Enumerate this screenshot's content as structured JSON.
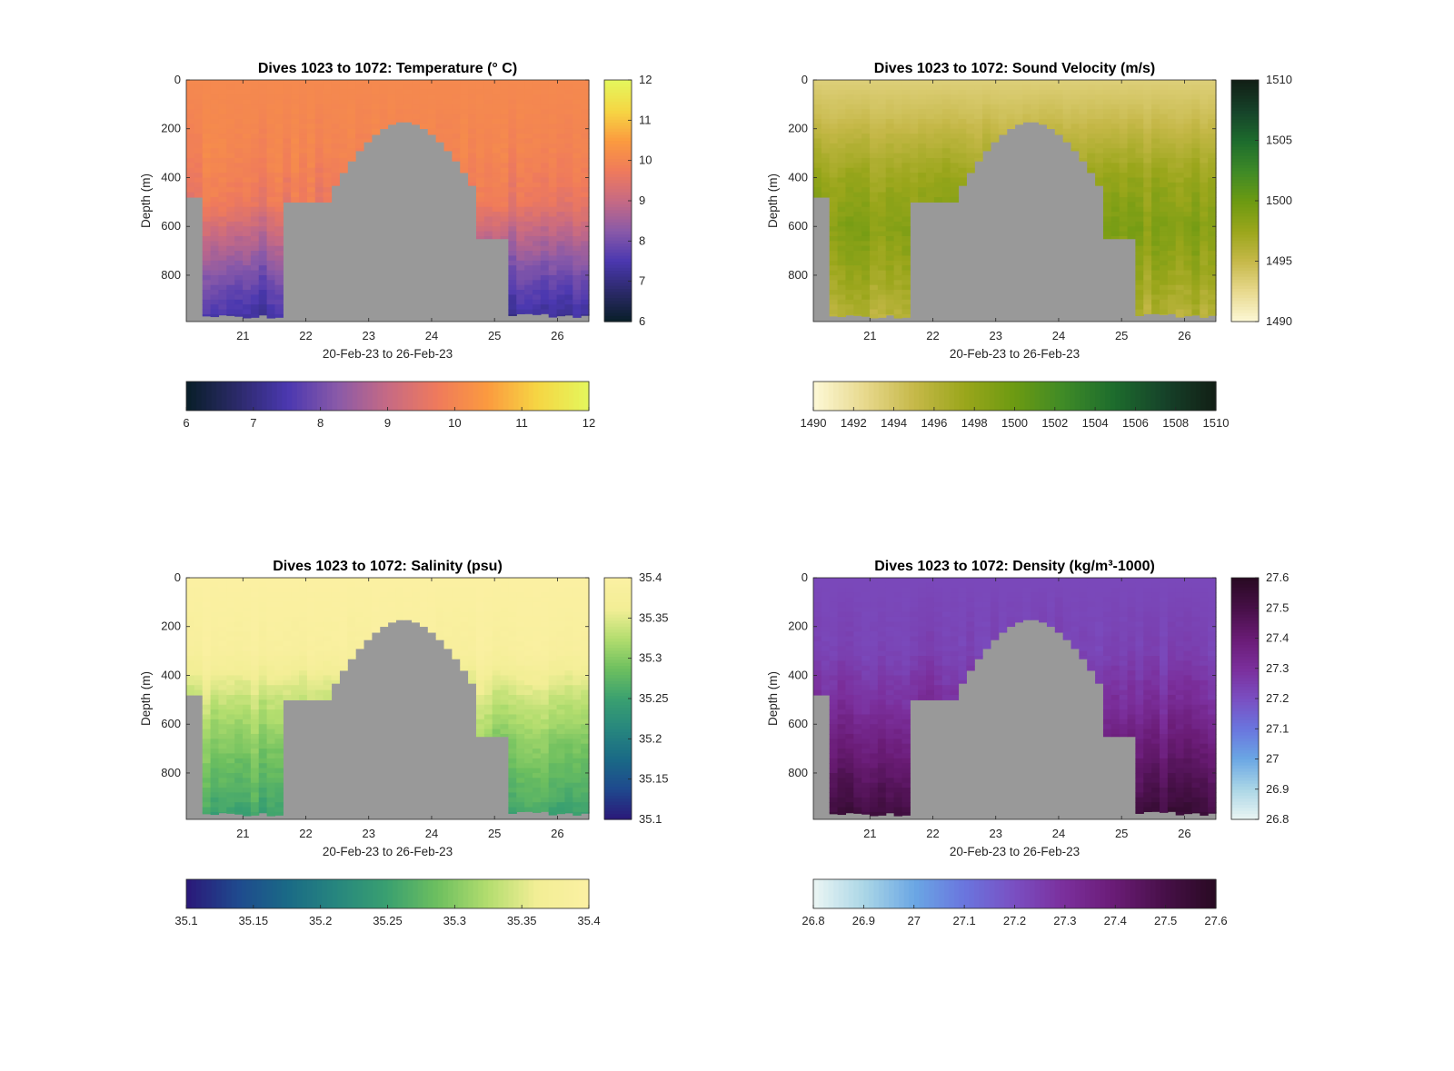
{
  "chart_data": [
    {
      "type": "heatmap",
      "title": "Dives 1023 to 1072: Temperature (° C)",
      "xlabel": "20-Feb-23 to 26-Feb-23",
      "ylabel": "Depth (m)",
      "x_ticks": [
        "21",
        "22",
        "23",
        "24",
        "25",
        "26"
      ],
      "x_tick_values": [
        21,
        22,
        23,
        24,
        25,
        26
      ],
      "xlim": [
        20.1,
        26.5
      ],
      "y_ticks": [
        "0",
        "200",
        "400",
        "600",
        "800"
      ],
      "y_tick_values": [
        0,
        200,
        400,
        600,
        800
      ],
      "ylim": [
        0,
        990
      ],
      "y_reversed": true,
      "clim": [
        6,
        12
      ],
      "colorbar_ticks": [
        "6",
        "7",
        "8",
        "9",
        "10",
        "11",
        "12"
      ],
      "colorbar_tick_values": [
        6,
        7,
        8,
        9,
        10,
        11,
        12
      ],
      "horizontal_colorbar_ticks": [
        "6",
        "7",
        "8",
        "9",
        "10",
        "11",
        "12"
      ],
      "colormap": [
        "#0a1f2b",
        "#2c2a6b",
        "#4b38b0",
        "#8a5aa8",
        "#c66a84",
        "#ef7a5c",
        "#fb9a3f",
        "#f6d543",
        "#e5f55b"
      ],
      "no_data_color": "#999999",
      "profile": {
        "depths": [
          0,
          300,
          500,
          600,
          800,
          990
        ],
        "values": [
          10.1,
          10.0,
          9.7,
          9.1,
          8.0,
          7.2
        ]
      }
    },
    {
      "type": "heatmap",
      "title": "Dives 1023 to 1072: Sound Velocity (m/s)",
      "xlabel": "20-Feb-23 to 26-Feb-23",
      "ylabel": "Depth (m)",
      "x_ticks": [
        "21",
        "22",
        "23",
        "24",
        "25",
        "26"
      ],
      "x_tick_values": [
        21,
        22,
        23,
        24,
        25,
        26
      ],
      "xlim": [
        20.1,
        26.5
      ],
      "y_ticks": [
        "0",
        "200",
        "400",
        "600",
        "800"
      ],
      "y_tick_values": [
        0,
        200,
        400,
        600,
        800
      ],
      "ylim": [
        0,
        990
      ],
      "y_reversed": true,
      "clim": [
        1490,
        1510
      ],
      "colorbar_ticks": [
        "1490",
        "1495",
        "1500",
        "1505",
        "1510"
      ],
      "colorbar_tick_values": [
        1490,
        1495,
        1500,
        1505,
        1510
      ],
      "horizontal_colorbar_ticks": [
        "1490",
        "1492",
        "1494",
        "1496",
        "1498",
        "1500",
        "1502",
        "1504",
        "1506",
        "1508",
        "1510"
      ],
      "colormap": [
        "#fcf7d3",
        "#e7d88c",
        "#c5b848",
        "#9aa61b",
        "#6c9a12",
        "#3e8a27",
        "#1d6c2d",
        "#16432a",
        "#122016"
      ],
      "no_data_color": "#999999",
      "profile": {
        "depths": [
          0,
          150,
          400,
          600,
          800,
          990
        ],
        "values": [
          1493.2,
          1494.5,
          1497.5,
          1498.8,
          1497.5,
          1495.8
        ]
      }
    },
    {
      "type": "heatmap",
      "title": "Dives 1023 to 1072: Salinity (psu)",
      "xlabel": "20-Feb-23 to 26-Feb-23",
      "ylabel": "Depth (m)",
      "x_ticks": [
        "21",
        "22",
        "23",
        "24",
        "25",
        "26"
      ],
      "x_tick_values": [
        21,
        22,
        23,
        24,
        25,
        26
      ],
      "xlim": [
        20.1,
        26.5
      ],
      "y_ticks": [
        "0",
        "200",
        "400",
        "600",
        "800"
      ],
      "y_tick_values": [
        0,
        200,
        400,
        600,
        800
      ],
      "ylim": [
        0,
        990
      ],
      "y_reversed": true,
      "clim": [
        35.1,
        35.4
      ],
      "colorbar_ticks": [
        "35.1",
        "35.15",
        "35.2",
        "35.25",
        "35.3",
        "35.35",
        "35.4"
      ],
      "colorbar_tick_values": [
        35.1,
        35.15,
        35.2,
        35.25,
        35.3,
        35.35,
        35.4
      ],
      "horizontal_colorbar_ticks": [
        "35.1",
        "35.15",
        "35.2",
        "35.25",
        "35.3",
        "35.35",
        "35.4"
      ],
      "colormap": [
        "#2a1a7a",
        "#1f4a8e",
        "#1a6a86",
        "#27877e",
        "#3aa070",
        "#6dbf5f",
        "#b2dd6e",
        "#f2ee95",
        "#fbf0a2"
      ],
      "no_data_color": "#999999",
      "profile": {
        "depths": [
          0,
          300,
          500,
          700,
          900,
          990
        ],
        "values": [
          35.4,
          35.39,
          35.34,
          35.3,
          35.27,
          35.25
        ]
      }
    },
    {
      "type": "heatmap",
      "title": "Dives 1023 to 1072: Density (kg/m³-1000)",
      "xlabel": "20-Feb-23 to 26-Feb-23",
      "ylabel": "Depth (m)",
      "x_ticks": [
        "21",
        "22",
        "23",
        "24",
        "25",
        "26"
      ],
      "x_tick_values": [
        21,
        22,
        23,
        24,
        25,
        26
      ],
      "xlim": [
        20.1,
        26.5
      ],
      "y_ticks": [
        "0",
        "200",
        "400",
        "600",
        "800"
      ],
      "y_tick_values": [
        0,
        200,
        400,
        600,
        800
      ],
      "ylim": [
        0,
        990
      ],
      "y_reversed": true,
      "clim": [
        26.8,
        27.6
      ],
      "colorbar_ticks": [
        "26.8",
        "26.9",
        "27",
        "27.1",
        "27.2",
        "27.3",
        "27.4",
        "27.5",
        "27.6"
      ],
      "colorbar_tick_values": [
        26.8,
        26.9,
        27.0,
        27.1,
        27.2,
        27.3,
        27.4,
        27.5,
        27.6
      ],
      "horizontal_colorbar_ticks": [
        "26.8",
        "26.9",
        "27",
        "27.1",
        "27.2",
        "27.3",
        "27.4",
        "27.5",
        "27.6"
      ],
      "colormap": [
        "#e8f4f3",
        "#a9d5e6",
        "#6aa6e4",
        "#6a75de",
        "#7a4fc2",
        "#7b2f9c",
        "#6a1c76",
        "#481049",
        "#2a0a24"
      ],
      "no_data_color": "#999999",
      "profile": {
        "depths": [
          0,
          300,
          500,
          700,
          900,
          990
        ],
        "values": [
          27.22,
          27.24,
          27.3,
          27.4,
          27.5,
          27.55
        ]
      }
    }
  ]
}
